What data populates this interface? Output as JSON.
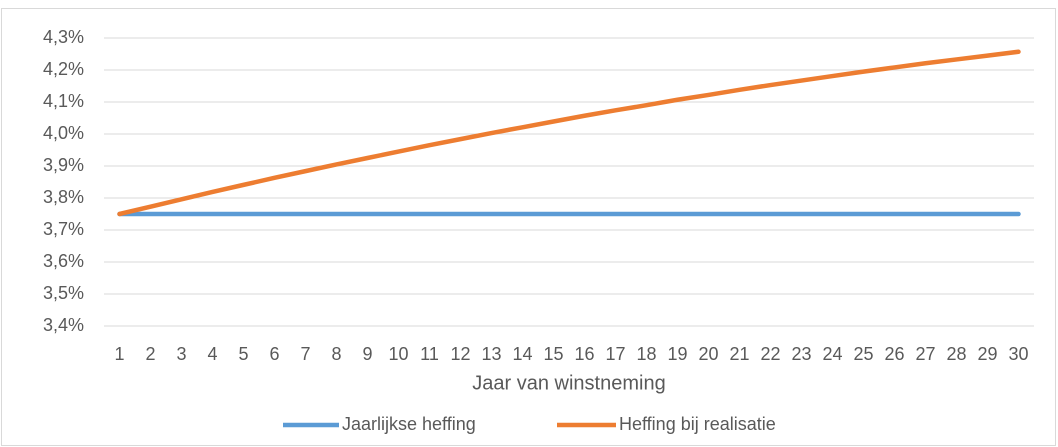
{
  "chart_data": {
    "type": "line",
    "x_label": "Jaar van winstneming",
    "x": [
      1,
      2,
      3,
      4,
      5,
      6,
      7,
      8,
      9,
      10,
      11,
      12,
      13,
      14,
      15,
      16,
      17,
      18,
      19,
      20,
      21,
      22,
      23,
      24,
      25,
      26,
      27,
      28,
      29,
      30
    ],
    "series": [
      {
        "name": "Jaarlijkse heffing",
        "color": "#5b9bd5",
        "values": [
          3.75,
          3.75,
          3.75,
          3.75,
          3.75,
          3.75,
          3.75,
          3.75,
          3.75,
          3.75,
          3.75,
          3.75,
          3.75,
          3.75,
          3.75,
          3.75,
          3.75,
          3.75,
          3.75,
          3.75,
          3.75,
          3.75,
          3.75,
          3.75,
          3.75,
          3.75,
          3.75,
          3.75,
          3.75,
          3.75
        ]
      },
      {
        "name": "Heffing bij realisatie",
        "color": "#ed7d31",
        "values": [
          3.75,
          3.773,
          3.796,
          3.819,
          3.841,
          3.863,
          3.884,
          3.905,
          3.925,
          3.945,
          3.965,
          3.984,
          4.003,
          4.021,
          4.039,
          4.057,
          4.074,
          4.09,
          4.107,
          4.122,
          4.138,
          4.153,
          4.167,
          4.181,
          4.195,
          4.208,
          4.221,
          4.233,
          4.245,
          4.257
        ]
      }
    ],
    "ylim": [
      3.4,
      4.3
    ],
    "yticks": [
      {
        "value": 3.4,
        "label": "3,4%"
      },
      {
        "value": 3.5,
        "label": "3,5%"
      },
      {
        "value": 3.6,
        "label": "3,6%"
      },
      {
        "value": 3.7,
        "label": "3,7%"
      },
      {
        "value": 3.8,
        "label": "3,8%"
      },
      {
        "value": 3.9,
        "label": "3,9%"
      },
      {
        "value": 4.0,
        "label": "4,0%"
      },
      {
        "value": 4.1,
        "label": "4,1%"
      },
      {
        "value": 4.2,
        "label": "4,2%"
      },
      {
        "value": 4.3,
        "label": "4,3%"
      }
    ],
    "grid": true,
    "legend": "bottom"
  }
}
